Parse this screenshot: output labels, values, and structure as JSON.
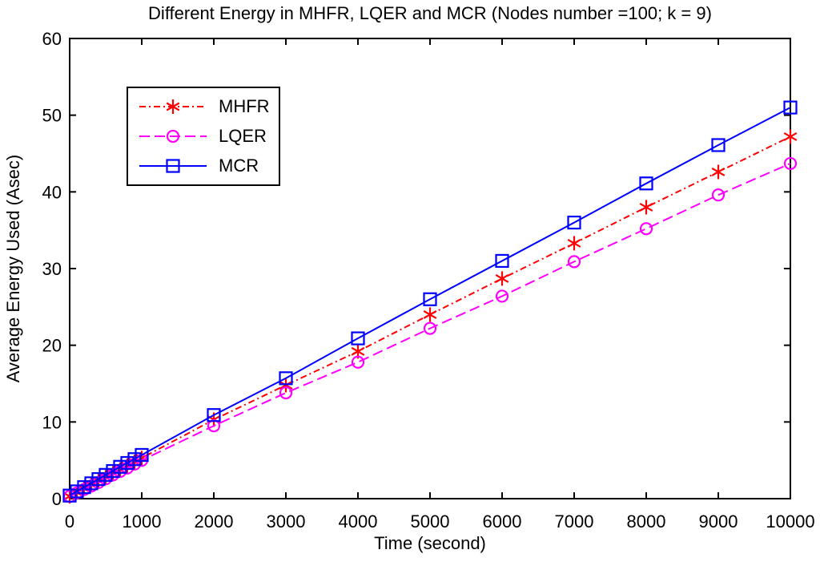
{
  "chart_data": {
    "type": "line",
    "title": "Different Energy in MHFR, LQER and MCR (Nodes number =100; k = 9)",
    "xlabel": "Time (second)",
    "ylabel": "Average Energy Used (Asec)",
    "xlim": [
      0,
      10000
    ],
    "ylim": [
      0,
      60
    ],
    "xticks": [
      0,
      1000,
      2000,
      3000,
      4000,
      5000,
      6000,
      7000,
      8000,
      9000,
      10000
    ],
    "yticks": [
      0,
      10,
      20,
      30,
      40,
      50,
      60
    ],
    "grid": false,
    "legend_position": "upper-left",
    "x": [
      0,
      100,
      200,
      300,
      400,
      500,
      600,
      700,
      800,
      900,
      1000,
      2000,
      3000,
      4000,
      5000,
      6000,
      7000,
      8000,
      9000,
      10000
    ],
    "series": [
      {
        "name": "MHFR",
        "color": "#ff0000",
        "line_style": "dash-dot",
        "marker": "asterisk",
        "values": [
          0.3,
          0.8,
          1.3,
          1.8,
          2.3,
          2.8,
          3.3,
          3.8,
          4.3,
          4.8,
          5.3,
          10.3,
          14.8,
          19.2,
          24.0,
          28.7,
          33.3,
          38.0,
          42.6,
          47.2
        ]
      },
      {
        "name": "LQER",
        "color": "#ff00ff",
        "line_style": "dashed",
        "marker": "circle",
        "values": [
          0.3,
          0.75,
          1.2,
          1.65,
          2.1,
          2.6,
          3.1,
          3.55,
          4.0,
          4.5,
          5.0,
          9.5,
          13.8,
          17.8,
          22.2,
          26.4,
          30.9,
          35.2,
          39.6,
          43.7
        ]
      },
      {
        "name": "MCR",
        "color": "#0000ff",
        "line_style": "solid",
        "marker": "square",
        "values": [
          0.4,
          0.95,
          1.5,
          2.0,
          2.55,
          3.1,
          3.6,
          4.15,
          4.65,
          5.15,
          5.7,
          10.9,
          15.7,
          20.9,
          26.0,
          31.0,
          36.0,
          41.1,
          46.1,
          51.0
        ]
      }
    ],
    "axis_color": "#000000",
    "background_color": "#ffffff"
  }
}
